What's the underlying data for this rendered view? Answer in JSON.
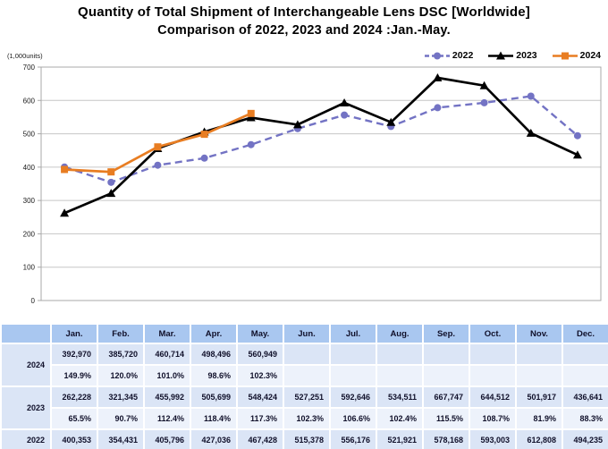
{
  "title": {
    "line1": "Quantity of Total Shipment of Interchangeable Lens DSC [Worldwide]",
    "line2": "Comparison of 2022, 2023 and 2024 :Jan.-May."
  },
  "chart": {
    "units_label": "(1,000units)",
    "grid_color": "#c6c6c6",
    "border_color": "#a9a9a9",
    "tick_label_color": "#1a1a1a"
  },
  "chart_data": {
    "type": "line",
    "title": "Quantity of Total Shipment of Interchangeable Lens DSC [Worldwide] Comparison of 2022, 2023 and 2024 :Jan.-May.",
    "xlabel": "",
    "ylabel": "(1,000units)",
    "ylim": [
      0,
      700
    ],
    "ytick_step": 100,
    "grid": true,
    "legend_position": "top-right",
    "x": [
      "Jan.",
      "Feb.",
      "Mar.",
      "Apr.",
      "May.",
      "Jun.",
      "Jul.",
      "Aug.",
      "Sep.",
      "Oct.",
      "Nov.",
      "Dec."
    ],
    "series": [
      {
        "name": "2022",
        "color": "#7373c4",
        "style": "dashed",
        "marker": "circle",
        "values": [
          400.353,
          354.431,
          405.796,
          427.036,
          467.428,
          515.378,
          556.176,
          521.921,
          578.168,
          593.003,
          612.808,
          494.235
        ]
      },
      {
        "name": "2023",
        "color": "#000000",
        "style": "solid",
        "marker": "triangle",
        "values": [
          262.228,
          321.345,
          455.992,
          505.699,
          548.424,
          527.251,
          592.646,
          534.511,
          667.747,
          644.512,
          501.917,
          436.641
        ]
      },
      {
        "name": "2024",
        "color": "#e87d22",
        "style": "solid",
        "marker": "square",
        "values": [
          392.97,
          385.72,
          460.714,
          498.496,
          560.949,
          null,
          null,
          null,
          null,
          null,
          null,
          null
        ]
      }
    ]
  },
  "table": {
    "months": [
      "Jan.",
      "Feb.",
      "Mar.",
      "Apr.",
      "May.",
      "Jun.",
      "Jul.",
      "Aug.",
      "Sep.",
      "Oct.",
      "Nov.",
      "Dec."
    ],
    "groups": [
      {
        "year": "2024",
        "values": [
          "392,970",
          "385,720",
          "460,714",
          "498,496",
          "560,949",
          "",
          "",
          "",
          "",
          "",
          "",
          ""
        ],
        "percents": [
          "149.9%",
          "120.0%",
          "101.0%",
          "98.6%",
          "102.3%",
          "",
          "",
          "",
          "",
          "",
          "",
          ""
        ]
      },
      {
        "year": "2023",
        "values": [
          "262,228",
          "321,345",
          "455,992",
          "505,699",
          "548,424",
          "527,251",
          "592,646",
          "534,511",
          "667,747",
          "644,512",
          "501,917",
          "436,641"
        ],
        "percents": [
          "65.5%",
          "90.7%",
          "112.4%",
          "118.4%",
          "117.3%",
          "102.3%",
          "106.6%",
          "102.4%",
          "115.5%",
          "108.7%",
          "81.9%",
          "88.3%"
        ]
      },
      {
        "year": "2022",
        "values": [
          "400,353",
          "354,431",
          "405,796",
          "427,036",
          "467,428",
          "515,378",
          "556,176",
          "521,921",
          "578,168",
          "593,003",
          "612,808",
          "494,235"
        ],
        "percents": null
      }
    ]
  }
}
